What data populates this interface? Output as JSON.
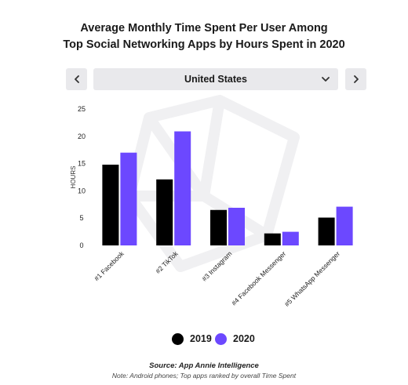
{
  "header": {
    "title_line1": "Average Monthly Time Spent Per User Among",
    "title_line2": "Top Social Networking Apps by Hours Spent in 2020"
  },
  "selector": {
    "country": "United States",
    "prev_icon": "chevron-left-icon",
    "next_icon": "chevron-right-icon",
    "dropdown_icon": "chevron-down-icon"
  },
  "chart_data": {
    "type": "bar",
    "title": "Average Monthly Time Spent Per User Among Top Social Networking Apps by Hours Spent in 2020",
    "xlabel": "",
    "ylabel": "HOURS",
    "ylim": [
      0,
      25
    ],
    "yticks": [
      0,
      5,
      10,
      15,
      20,
      25
    ],
    "grid": false,
    "legend": "bottom-center",
    "categories": [
      "#1 Facebook",
      "#2 TikTok",
      "#3 Instagram",
      "#4 Facebook Messenger",
      "#5 WhatsApp Messenger"
    ],
    "series": [
      {
        "name": "2019",
        "color": "#000000",
        "values": [
          14.8,
          12.1,
          6.5,
          2.2,
          5.1
        ]
      },
      {
        "name": "2020",
        "color": "#6c48ff",
        "values": [
          17.0,
          20.9,
          6.9,
          2.5,
          7.1
        ]
      }
    ]
  },
  "legend": {
    "items": [
      {
        "label": "2019",
        "color": "#000000"
      },
      {
        "label": "2020",
        "color": "#6c48ff"
      }
    ]
  },
  "footer": {
    "source": "Source: App Annie Intelligence",
    "note": "Note: Android phones; Top apps ranked by overall Time Spent"
  }
}
